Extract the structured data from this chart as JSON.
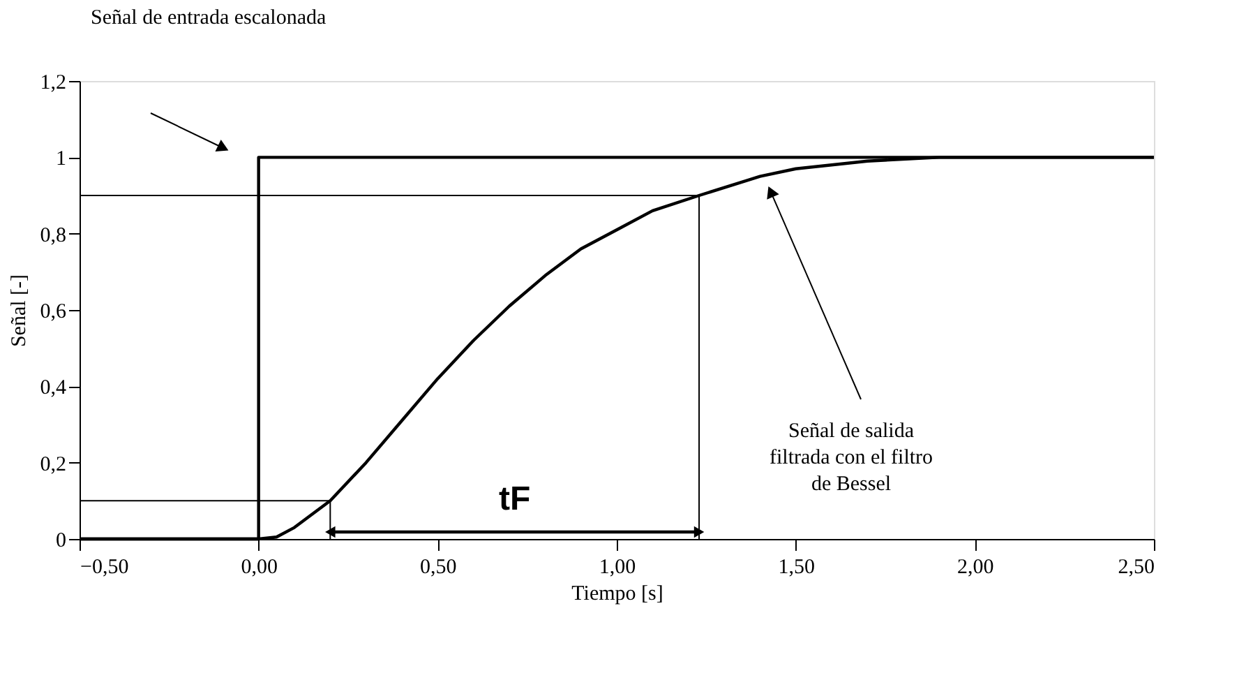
{
  "chart_data": {
    "type": "line",
    "xlabel": "Tiempo [s]",
    "ylabel": "Señal [-]",
    "xlim": [
      -0.5,
      2.5
    ],
    "ylim": [
      0,
      1.2
    ],
    "xticks": [
      {
        "value": -0.5,
        "label": "−0,50"
      },
      {
        "value": 0,
        "label": "0,00"
      },
      {
        "value": 0.5,
        "label": "0,50"
      },
      {
        "value": 1,
        "label": "1,00"
      },
      {
        "value": 1.5,
        "label": "1,50"
      },
      {
        "value": 2,
        "label": "2,00"
      },
      {
        "value": 2.5,
        "label": "2,50"
      }
    ],
    "yticks": [
      {
        "value": 0,
        "label": "0"
      },
      {
        "value": 0.2,
        "label": "0,2"
      },
      {
        "value": 0.4,
        "label": "0,4"
      },
      {
        "value": 0.6,
        "label": "0,6"
      },
      {
        "value": 0.8,
        "label": "0,8"
      },
      {
        "value": 1,
        "label": "1"
      },
      {
        "value": 1.2,
        "label": "1,2"
      }
    ],
    "grid": false,
    "marker": "none",
    "line_style": "solid",
    "series": [
      {
        "color": "#000000",
        "x": [
          -0.5,
          0,
          0,
          2.5
        ],
        "values": [
          0,
          0,
          1,
          1
        ]
      },
      {
        "color": "#000000",
        "x": [
          -0.5,
          0,
          0.05,
          0.1,
          0.2,
          0.3,
          0.4,
          0.5,
          0.6,
          0.7,
          0.8,
          0.9,
          1.0,
          1.1,
          1.23,
          1.4,
          1.5,
          1.7,
          1.9,
          2.5
        ],
        "values": [
          0,
          0,
          0.005,
          0.03,
          0.1,
          0.2,
          0.31,
          0.42,
          0.52,
          0.61,
          0.69,
          0.76,
          0.81,
          0.86,
          0.9,
          0.95,
          0.97,
          0.99,
          1.0,
          1.0
        ]
      },
      {
        "color": "#000000",
        "x": [
          -0.5,
          0.2,
          0.2
        ],
        "values": [
          0.1,
          0.1,
          0
        ]
      },
      {
        "color": "#000000",
        "x": [
          -0.5,
          1.23,
          1.23
        ],
        "values": [
          0.9,
          0.9,
          0
        ]
      }
    ],
    "annotations": [
      "Señal de entrada escalonada",
      {
        "text": "Señal de salida\nfiltrada con el filtro\nde Bessel",
        "x": 1.43,
        "y": 0.91
      },
      "tF"
    ]
  }
}
